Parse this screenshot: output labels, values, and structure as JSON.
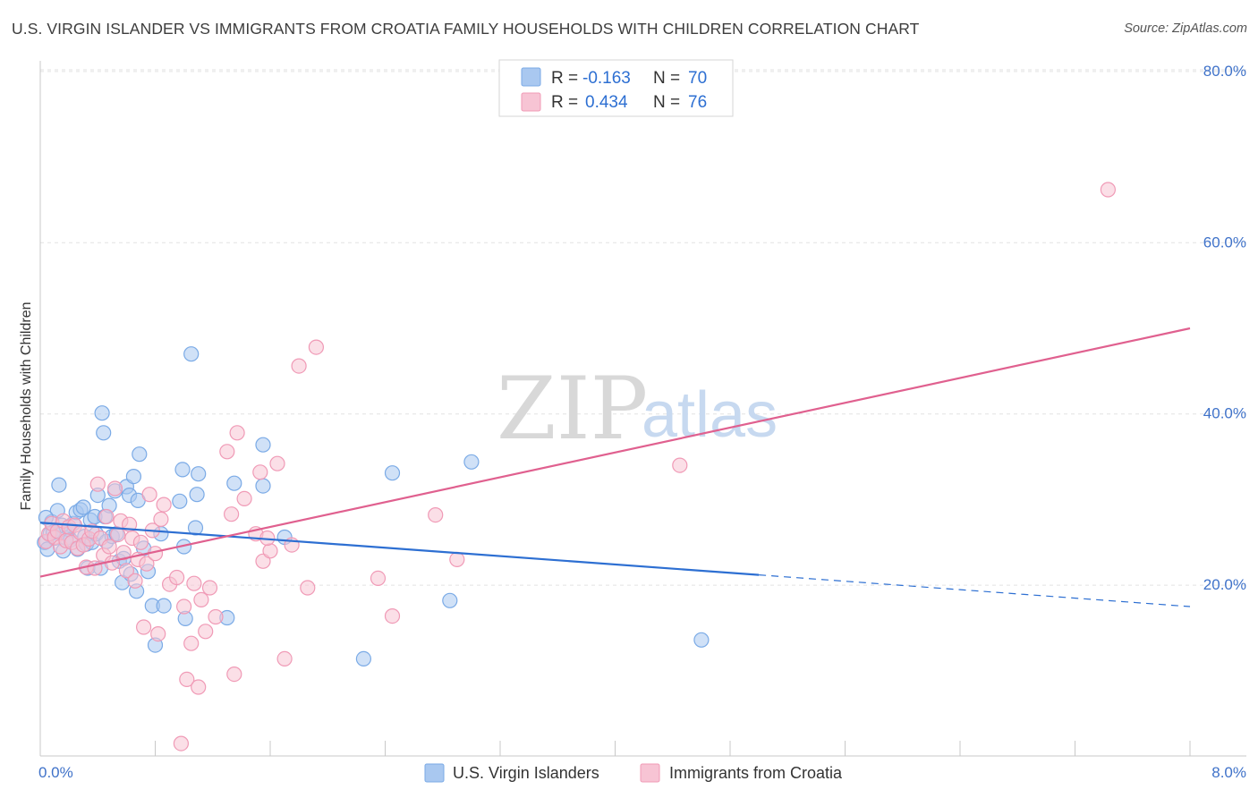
{
  "chart_data": {
    "type": "scatter",
    "title": "U.S. VIRGIN ISLANDER VS IMMIGRANTS FROM CROATIA FAMILY HOUSEHOLDS WITH CHILDREN CORRELATION CHART",
    "source": "Source: ZipAtlas.com",
    "xlabel": "",
    "ylabel": "Family Households with Children",
    "xlim": [
      0,
      8
    ],
    "ylim": [
      0,
      80
    ],
    "x_tick_labels": {
      "min": "0.0%",
      "max": "8.0%"
    },
    "y_ticks": [
      {
        "value": 20,
        "label": "20.0%"
      },
      {
        "value": 40,
        "label": "40.0%"
      },
      {
        "value": 60,
        "label": "60.0%"
      },
      {
        "value": 80,
        "label": "80.0%"
      }
    ],
    "grid": true,
    "watermark": {
      "zip": "ZIP",
      "atlas": "atlas"
    },
    "legend": {
      "position": "top-center",
      "r_label": "R =",
      "n_label": "N =",
      "entries": [
        {
          "r": "-0.163",
          "n": "70"
        },
        {
          "r": "0.434",
          "n": "76"
        }
      ]
    },
    "series": [
      {
        "name": "U.S. Virgin Islanders",
        "color": "#7aaae6",
        "fill": "#a9c8f0",
        "line_color": "#2d6fd2",
        "trend": {
          "x0": 0,
          "y0": 27.3,
          "x1": 5.0,
          "y1": 21.2,
          "dash_to_x": 8.0,
          "dash_to_y": 17.5
        },
        "points": [
          [
            0.03,
            25.0
          ],
          [
            0.05,
            24.2
          ],
          [
            0.07,
            26.0
          ],
          [
            0.08,
            27.4
          ],
          [
            0.1,
            25.5
          ],
          [
            0.12,
            28.7
          ],
          [
            0.13,
            31.7
          ],
          [
            0.15,
            27.0
          ],
          [
            0.16,
            24.0
          ],
          [
            0.18,
            25.5
          ],
          [
            0.2,
            26.5
          ],
          [
            0.21,
            25.3
          ],
          [
            0.23,
            27.2
          ],
          [
            0.25,
            28.5
          ],
          [
            0.26,
            24.2
          ],
          [
            0.28,
            28.8
          ],
          [
            0.3,
            29.1
          ],
          [
            0.31,
            25.7
          ],
          [
            0.32,
            24.8
          ],
          [
            0.33,
            22.0
          ],
          [
            0.35,
            27.6
          ],
          [
            0.36,
            25.0
          ],
          [
            0.38,
            28.0
          ],
          [
            0.39,
            26.0
          ],
          [
            0.4,
            30.5
          ],
          [
            0.42,
            22.0
          ],
          [
            0.43,
            40.1
          ],
          [
            0.44,
            37.8
          ],
          [
            0.45,
            28.0
          ],
          [
            0.46,
            25.1
          ],
          [
            0.48,
            29.3
          ],
          [
            0.5,
            25.7
          ],
          [
            0.52,
            31.0
          ],
          [
            0.53,
            26.0
          ],
          [
            0.55,
            22.8
          ],
          [
            0.57,
            20.3
          ],
          [
            0.58,
            23.1
          ],
          [
            0.6,
            31.5
          ],
          [
            0.62,
            30.5
          ],
          [
            0.63,
            21.3
          ],
          [
            0.65,
            32.7
          ],
          [
            0.67,
            19.3
          ],
          [
            0.68,
            29.9
          ],
          [
            0.69,
            35.3
          ],
          [
            0.72,
            24.3
          ],
          [
            0.75,
            21.6
          ],
          [
            0.78,
            17.6
          ],
          [
            0.8,
            13.0
          ],
          [
            0.84,
            26.0
          ],
          [
            0.86,
            17.6
          ],
          [
            0.97,
            29.8
          ],
          [
            0.99,
            33.5
          ],
          [
            1.0,
            24.5
          ],
          [
            1.01,
            16.1
          ],
          [
            1.05,
            47.0
          ],
          [
            1.08,
            26.7
          ],
          [
            1.09,
            30.6
          ],
          [
            1.1,
            33.0
          ],
          [
            1.3,
            16.2
          ],
          [
            1.35,
            31.9
          ],
          [
            1.55,
            36.4
          ],
          [
            1.55,
            31.6
          ],
          [
            1.7,
            25.6
          ],
          [
            2.25,
            11.4
          ],
          [
            2.45,
            33.1
          ],
          [
            2.85,
            18.2
          ],
          [
            3.0,
            34.4
          ],
          [
            4.6,
            13.6
          ],
          [
            0.04,
            27.9
          ],
          [
            0.09,
            26.2
          ]
        ]
      },
      {
        "name": "Immigrants from Croatia",
        "color": "#f09ab6",
        "fill": "#f7c4d4",
        "line_color": "#e0608f",
        "trend": {
          "x0": 0,
          "y0": 21.0,
          "x1": 8.0,
          "y1": 50.0
        },
        "points": [
          [
            0.04,
            25.1
          ],
          [
            0.06,
            26.0
          ],
          [
            0.08,
            27.2
          ],
          [
            0.1,
            25.6
          ],
          [
            0.12,
            26.3
          ],
          [
            0.14,
            24.5
          ],
          [
            0.16,
            27.5
          ],
          [
            0.18,
            25.2
          ],
          [
            0.2,
            26.8
          ],
          [
            0.22,
            25.0
          ],
          [
            0.24,
            27.0
          ],
          [
            0.26,
            24.3
          ],
          [
            0.28,
            26.1
          ],
          [
            0.3,
            24.7
          ],
          [
            0.32,
            22.1
          ],
          [
            0.34,
            25.4
          ],
          [
            0.36,
            26.3
          ],
          [
            0.38,
            22.0
          ],
          [
            0.4,
            31.8
          ],
          [
            0.42,
            25.5
          ],
          [
            0.44,
            23.5
          ],
          [
            0.46,
            28.0
          ],
          [
            0.48,
            24.5
          ],
          [
            0.5,
            22.6
          ],
          [
            0.52,
            31.3
          ],
          [
            0.54,
            25.9
          ],
          [
            0.56,
            27.5
          ],
          [
            0.58,
            23.8
          ],
          [
            0.6,
            21.7
          ],
          [
            0.62,
            27.1
          ],
          [
            0.64,
            25.5
          ],
          [
            0.66,
            20.5
          ],
          [
            0.68,
            23.0
          ],
          [
            0.7,
            25.0
          ],
          [
            0.72,
            15.1
          ],
          [
            0.74,
            22.5
          ],
          [
            0.76,
            30.6
          ],
          [
            0.78,
            26.4
          ],
          [
            0.8,
            23.7
          ],
          [
            0.82,
            14.3
          ],
          [
            0.84,
            27.7
          ],
          [
            0.86,
            29.4
          ],
          [
            0.9,
            20.1
          ],
          [
            0.95,
            20.9
          ],
          [
            0.98,
            1.5
          ],
          [
            1.0,
            17.5
          ],
          [
            1.02,
            9.0
          ],
          [
            1.05,
            13.2
          ],
          [
            1.07,
            20.2
          ],
          [
            1.1,
            8.1
          ],
          [
            1.12,
            18.3
          ],
          [
            1.15,
            14.6
          ],
          [
            1.18,
            19.7
          ],
          [
            1.22,
            16.3
          ],
          [
            1.3,
            35.6
          ],
          [
            1.33,
            28.3
          ],
          [
            1.35,
            9.6
          ],
          [
            1.37,
            37.8
          ],
          [
            1.42,
            30.1
          ],
          [
            1.5,
            26.0
          ],
          [
            1.53,
            33.2
          ],
          [
            1.55,
            22.8
          ],
          [
            1.6,
            24.0
          ],
          [
            1.65,
            34.2
          ],
          [
            1.7,
            11.4
          ],
          [
            1.75,
            24.7
          ],
          [
            1.8,
            45.6
          ],
          [
            1.86,
            19.7
          ],
          [
            1.92,
            47.8
          ],
          [
            2.35,
            20.8
          ],
          [
            2.45,
            16.4
          ],
          [
            2.75,
            28.2
          ],
          [
            2.9,
            23.0
          ],
          [
            4.45,
            34.0
          ],
          [
            7.43,
            66.2
          ],
          [
            1.58,
            25.5
          ]
        ]
      }
    ]
  },
  "bottom_legend": [
    {
      "label": "U.S. Virgin Islanders"
    },
    {
      "label": "Immigrants from Croatia"
    }
  ]
}
